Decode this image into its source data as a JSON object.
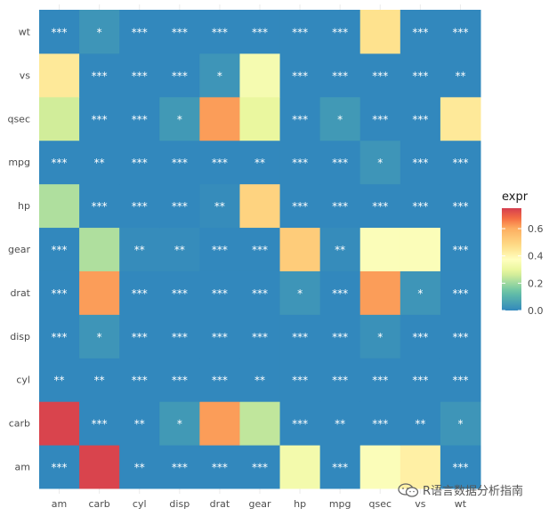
{
  "chart_data": {
    "type": "heatmap",
    "x_labels": [
      "am",
      "carb",
      "cyl",
      "disp",
      "drat",
      "gear",
      "hp",
      "mpg",
      "qsec",
      "vs",
      "wt"
    ],
    "y_labels": [
      "am",
      "carb",
      "cyl",
      "disp",
      "drat",
      "gear",
      "hp",
      "mpg",
      "qsec",
      "vs",
      "wt"
    ],
    "legend": {
      "title": "expr",
      "ticks": [
        "0.0",
        "0.2",
        "0.4",
        "0.6"
      ],
      "range": [
        0,
        0.75
      ]
    },
    "rows": {
      "wt": {
        "values": [
          0.0,
          0.03,
          0.0,
          0.0,
          0.0,
          0.0,
          0.0,
          0.0,
          0.46,
          0.0,
          0.0
        ],
        "labels": [
          "***",
          "*",
          "***",
          "***",
          "***",
          "***",
          "***",
          "***",
          "",
          "***",
          "***"
        ]
      },
      "vs": {
        "values": [
          0.44,
          0.0,
          0.0,
          0.0,
          0.03,
          0.34,
          0.0,
          0.0,
          0.0,
          0.0,
          0.0
        ],
        "labels": [
          "",
          "***",
          "***",
          "***",
          "*",
          "",
          "***",
          "***",
          "***",
          "***",
          "**"
        ]
      },
      "qsec": {
        "values": [
          0.26,
          0.0,
          0.0,
          0.04,
          0.62,
          0.3,
          0.0,
          0.04,
          0.0,
          0.0,
          0.44
        ],
        "labels": [
          "",
          "***",
          "***",
          "*",
          "",
          "",
          "***",
          "*",
          "***",
          "***",
          ""
        ]
      },
      "mpg": {
        "values": [
          0.0,
          0.0,
          0.0,
          0.0,
          0.0,
          0.0,
          0.0,
          0.0,
          0.03,
          0.0,
          0.0
        ],
        "labels": [
          "***",
          "**",
          "***",
          "***",
          "***",
          "**",
          "***",
          "***",
          "*",
          "***",
          "***"
        ]
      },
      "hp": {
        "values": [
          0.22,
          0.0,
          0.0,
          0.0,
          0.01,
          0.5,
          0.0,
          0.0,
          0.0,
          0.0,
          0.0
        ],
        "labels": [
          "",
          "***",
          "***",
          "***",
          "**",
          "",
          "***",
          "***",
          "***",
          "***",
          "***"
        ]
      },
      "gear": {
        "values": [
          0.0,
          0.22,
          0.01,
          0.01,
          0.0,
          0.0,
          0.52,
          0.01,
          0.36,
          0.36,
          0.0
        ],
        "labels": [
          "***",
          "",
          "**",
          "**",
          "***",
          "***",
          "",
          "**",
          "",
          "",
          "***"
        ]
      },
      "drat": {
        "values": [
          0.0,
          0.62,
          0.0,
          0.0,
          0.0,
          0.0,
          0.03,
          0.0,
          0.62,
          0.03,
          0.0
        ],
        "labels": [
          "***",
          "",
          "***",
          "***",
          "***",
          "***",
          "*",
          "***",
          "",
          "*",
          "***"
        ]
      },
      "disp": {
        "values": [
          0.0,
          0.03,
          0.0,
          0.0,
          0.0,
          0.0,
          0.0,
          0.0,
          0.02,
          0.0,
          0.0
        ],
        "labels": [
          "***",
          "*",
          "***",
          "***",
          "***",
          "***",
          "***",
          "***",
          "*",
          "***",
          "***"
        ]
      },
      "cyl": {
        "values": [
          0.0,
          0.0,
          0.0,
          0.0,
          0.0,
          0.0,
          0.0,
          0.0,
          0.0,
          0.0,
          0.0
        ],
        "labels": [
          "**",
          "**",
          "***",
          "***",
          "***",
          "**",
          "***",
          "***",
          "***",
          "***",
          "***"
        ]
      },
      "carb": {
        "values": [
          0.74,
          0.0,
          0.0,
          0.04,
          0.62,
          0.24,
          0.0,
          0.0,
          0.0,
          0.0,
          0.03
        ],
        "labels": [
          "",
          "***",
          "**",
          "*",
          "",
          "",
          "***",
          "**",
          "***",
          "**",
          "*"
        ]
      },
      "am": {
        "values": [
          0.0,
          0.74,
          0.0,
          0.0,
          0.0,
          0.0,
          0.33,
          0.0,
          0.36,
          0.42,
          0.0
        ],
        "labels": [
          "***",
          "",
          "**",
          "***",
          "***",
          "***",
          "",
          "***",
          "",
          "",
          "***"
        ]
      }
    }
  },
  "watermark": {
    "text": "R语言数据分析指南"
  }
}
